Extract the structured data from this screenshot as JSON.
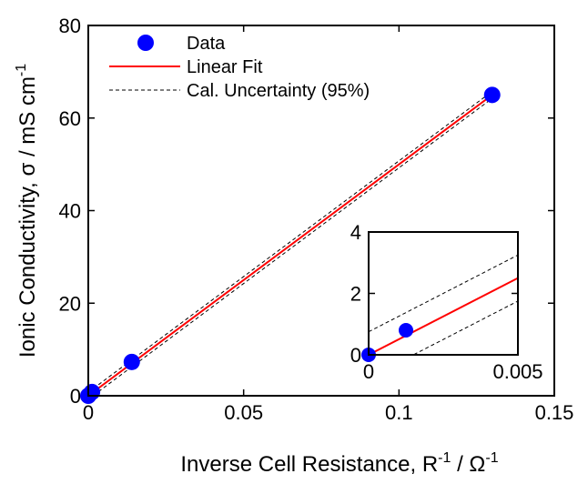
{
  "chart_data": [
    {
      "type": "scatter",
      "xlabel": [
        {
          "text": "Inverse Cell Resistance, R"
        },
        {
          "text": "-1",
          "sup": true
        },
        {
          "text": " / Ω"
        },
        {
          "text": "-1",
          "sup": true
        }
      ],
      "ylabel": [
        {
          "text": "Ionic Conductivity, σ / mS cm"
        },
        {
          "text": "-1",
          "sup": true
        }
      ],
      "xlim": [
        0,
        0.15
      ],
      "xticks": [
        0,
        0.05,
        0.1,
        0.15
      ],
      "ylim": [
        0,
        80
      ],
      "yticks": [
        0,
        20,
        40,
        60,
        80
      ],
      "grid": false,
      "legend": "upper left",
      "series": [
        {
          "name": "Data",
          "style": "marker",
          "color": "#0000ff",
          "x": [
            0,
            0.0012,
            0.014,
            0.13
          ],
          "values": [
            0,
            0.8,
            7.3,
            65
          ]
        },
        {
          "name": "Linear Fit",
          "style": "line",
          "color": "#ff0000",
          "x": [
            0,
            0.13
          ],
          "values": [
            0,
            65
          ]
        },
        {
          "name": "Cal. Uncertainty (95%)",
          "style": "dashed",
          "color": "#000000",
          "x": [
            0,
            0.13
          ],
          "values": [
            0.75,
            65.75
          ],
          "lower": [
            -0.75,
            64.25
          ]
        }
      ]
    },
    {
      "type": "scatter",
      "xlim": [
        0,
        0.005
      ],
      "xticks": [
        0,
        0.005
      ],
      "ylim": [
        0,
        4
      ],
      "yticks": [
        0,
        2,
        4
      ],
      "grid": false,
      "series": [
        {
          "style": "marker",
          "color": "#0000ff",
          "x": [
            0,
            0.00125
          ],
          "values": [
            0,
            0.8
          ]
        },
        {
          "style": "line",
          "color": "#ff0000",
          "x": [
            0,
            0.005
          ],
          "values": [
            0,
            2.5
          ]
        },
        {
          "style": "dashed",
          "color": "#000000",
          "x": [
            0,
            0.005
          ],
          "values": [
            0.75,
            3.25
          ],
          "lower": [
            -0.75,
            1.75
          ]
        }
      ]
    }
  ]
}
